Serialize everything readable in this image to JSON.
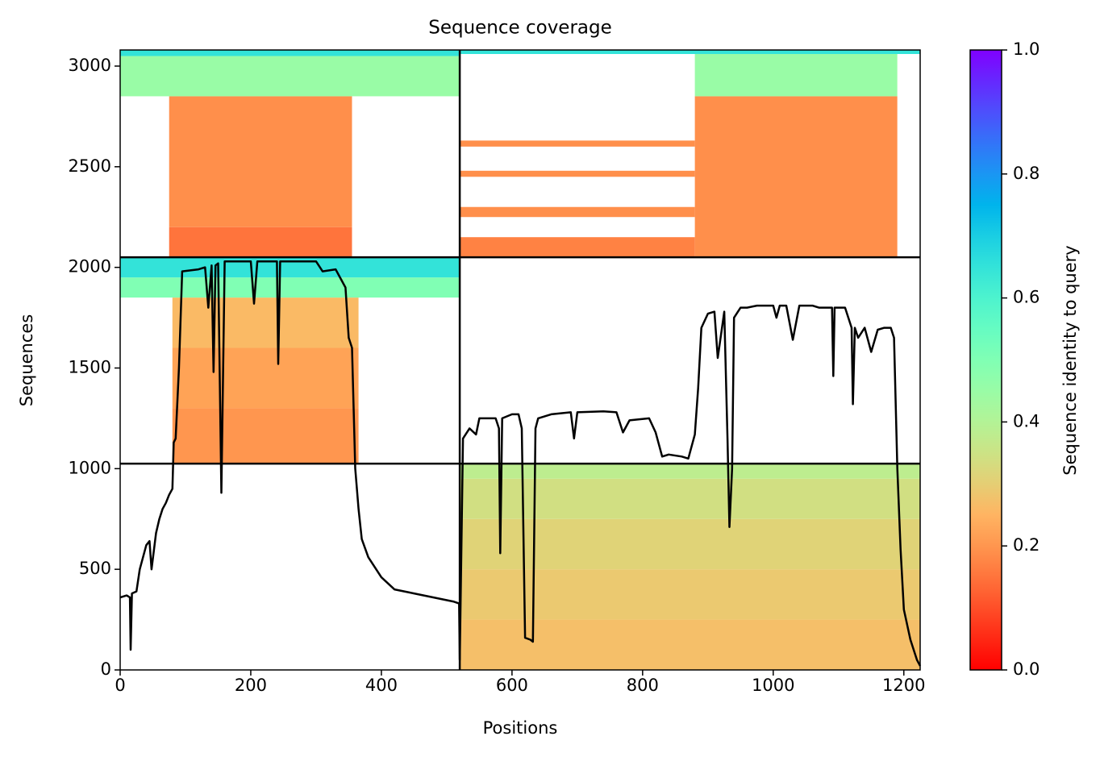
{
  "chart_data": {
    "type": "coverage",
    "title": "Sequence coverage",
    "xlabel": "Positions",
    "ylabel": "Sequences",
    "colorbar_label": "Sequence identity to query",
    "colormap": "rainbow_r",
    "xlim": [
      0,
      1225
    ],
    "ylim": [
      0,
      3080
    ],
    "xticks": [
      0,
      200,
      400,
      600,
      800,
      1000,
      1200
    ],
    "yticks": [
      0,
      500,
      1000,
      1500,
      2000,
      2500,
      3000
    ],
    "clim": [
      0,
      1
    ],
    "cticks": [
      {
        "value": 0,
        "label": "0.0"
      },
      0.2,
      0.4,
      0.6,
      0.8,
      {
        "value": 1,
        "label": "1.0"
      }
    ],
    "section_boundaries": {
      "x": [
        520
      ],
      "y": [
        1025,
        2050
      ]
    },
    "blocks": [
      {
        "x": [
          520,
          1225
        ],
        "y": [
          0,
          250
        ],
        "identity": 0.27
      },
      {
        "x": [
          520,
          1225
        ],
        "y": [
          250,
          500
        ],
        "identity": 0.29
      },
      {
        "x": [
          520,
          1225
        ],
        "y": [
          500,
          750
        ],
        "identity": 0.31
      },
      {
        "x": [
          520,
          1225
        ],
        "y": [
          750,
          950
        ],
        "identity": 0.34
      },
      {
        "x": [
          520,
          1225
        ],
        "y": [
          950,
          1025
        ],
        "identity": 0.38
      },
      {
        "x": [
          80,
          365
        ],
        "y": [
          1025,
          1300
        ],
        "identity": 0.2
      },
      {
        "x": [
          80,
          365
        ],
        "y": [
          1300,
          1600
        ],
        "identity": 0.22
      },
      {
        "x": [
          80,
          365
        ],
        "y": [
          1600,
          1850
        ],
        "identity": 0.26
      },
      {
        "x": [
          0,
          520
        ],
        "y": [
          1850,
          1950
        ],
        "identity": 0.5
      },
      {
        "x": [
          0,
          520
        ],
        "y": [
          1950,
          2050
        ],
        "identity": 0.65
      },
      {
        "x": [
          75,
          355
        ],
        "y": [
          2050,
          2200
        ],
        "identity": 0.15
      },
      {
        "x": [
          75,
          355
        ],
        "y": [
          2200,
          2850
        ],
        "identity": 0.19
      },
      {
        "x": [
          0,
          520
        ],
        "y": [
          2850,
          3050
        ],
        "identity": 0.45
      },
      {
        "x": [
          0,
          520
        ],
        "y": [
          3050,
          3080
        ],
        "identity": 0.65
      },
      {
        "x": [
          520,
          880
        ],
        "y": [
          2050,
          2150
        ],
        "identity": 0.17
      },
      {
        "x": [
          520,
          880
        ],
        "y": [
          2250,
          2300
        ],
        "identity": 0.19
      },
      {
        "x": [
          520,
          880
        ],
        "y": [
          2450,
          2480
        ],
        "identity": 0.19
      },
      {
        "x": [
          520,
          880
        ],
        "y": [
          2600,
          2630
        ],
        "identity": 0.19
      },
      {
        "x": [
          880,
          1190
        ],
        "y": [
          2050,
          2850
        ],
        "identity": 0.19
      },
      {
        "x": [
          880,
          1190
        ],
        "y": [
          2850,
          3060
        ],
        "identity": 0.45
      },
      {
        "x": [
          520,
          1225
        ],
        "y": [
          3060,
          3080
        ],
        "identity": 0.65
      }
    ],
    "coverage": {
      "x": [
        0,
        10,
        15,
        16,
        18,
        25,
        30,
        40,
        45,
        48,
        55,
        60,
        65,
        70,
        75,
        80,
        82,
        85,
        90,
        95,
        120,
        130,
        135,
        140,
        143,
        146,
        150,
        155,
        160,
        200,
        205,
        210,
        240,
        242,
        245,
        300,
        310,
        330,
        345,
        350,
        355,
        360,
        365,
        370,
        380,
        400,
        420,
        450,
        480,
        510,
        519,
        520,
        525,
        535,
        545,
        550,
        575,
        580,
        582,
        585,
        600,
        610,
        615,
        620,
        628,
        632,
        636,
        640,
        660,
        690,
        695,
        700,
        740,
        760,
        770,
        780,
        810,
        820,
        830,
        840,
        860,
        870,
        880,
        885,
        890,
        900,
        910,
        915,
        925,
        930,
        933,
        937,
        940,
        950,
        960,
        975,
        1000,
        1005,
        1010,
        1020,
        1030,
        1040,
        1060,
        1070,
        1090,
        1092,
        1094,
        1110,
        1120,
        1122,
        1125,
        1130,
        1140,
        1150,
        1160,
        1170,
        1180,
        1185,
        1190,
        1195,
        1200,
        1210,
        1220,
        1225
      ],
      "y": [
        360,
        370,
        360,
        100,
        380,
        390,
        500,
        620,
        640,
        500,
        680,
        750,
        800,
        830,
        870,
        900,
        1130,
        1150,
        1500,
        1980,
        1990,
        2000,
        1800,
        2010,
        1480,
        2010,
        2020,
        880,
        2030,
        2030,
        1820,
        2030,
        2030,
        1520,
        2030,
        2030,
        1980,
        1990,
        1900,
        1650,
        1600,
        1000,
        800,
        650,
        560,
        460,
        400,
        380,
        360,
        340,
        330,
        50,
        1150,
        1200,
        1170,
        1250,
        1250,
        1200,
        580,
        1250,
        1270,
        1270,
        1200,
        160,
        150,
        140,
        1200,
        1250,
        1270,
        1280,
        1150,
        1280,
        1285,
        1280,
        1180,
        1240,
        1250,
        1180,
        1060,
        1070,
        1060,
        1050,
        1170,
        1400,
        1700,
        1770,
        1780,
        1550,
        1780,
        1150,
        710,
        1000,
        1750,
        1800,
        1800,
        1810,
        1810,
        1750,
        1810,
        1810,
        1640,
        1810,
        1810,
        1800,
        1800,
        1460,
        1800,
        1800,
        1700,
        1320,
        1700,
        1650,
        1700,
        1580,
        1690,
        1700,
        1700,
        1650,
        1000,
        600,
        300,
        150,
        50,
        20
      ]
    }
  }
}
